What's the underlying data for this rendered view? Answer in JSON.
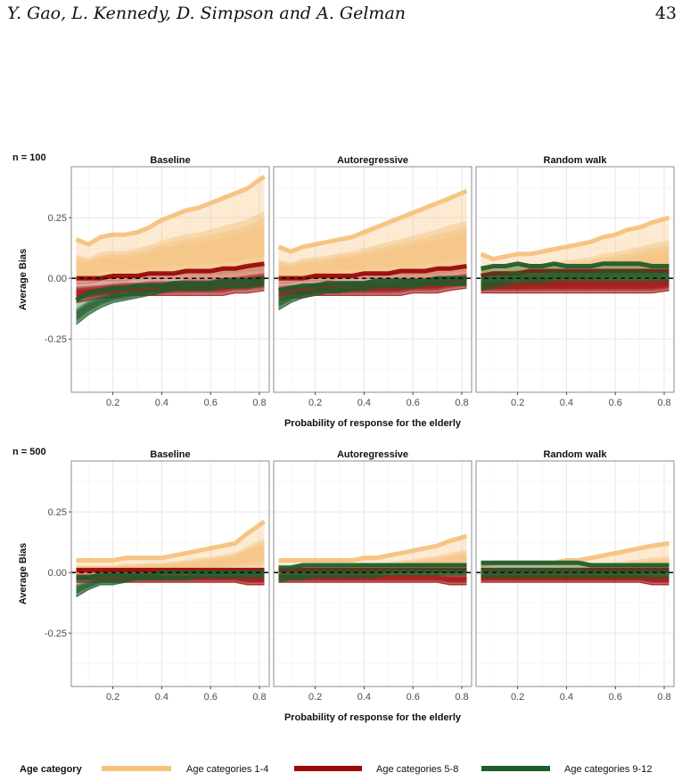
{
  "page_header": {
    "authors": "Y. Gao, L. Kennedy, D. Simpson and A. Gelman",
    "page_number": "43"
  },
  "colors": {
    "age_1_4": "#f5c27d",
    "age_5_8": "#9b0a0a",
    "age_9_12": "#1f5d2b",
    "grid": "#ebebeb",
    "border": "#8c8c8c"
  },
  "chart_data": [
    {
      "type": "line",
      "row_label": "n = 100",
      "xlabel": "Probability of response for the elderly",
      "ylabel": "Average Bias",
      "xlim": [
        0.03,
        0.84
      ],
      "ylim": [
        -0.47,
        0.46
      ],
      "xticks": [
        0.2,
        0.4,
        0.6,
        0.8
      ],
      "xtick_labels": [
        "0.2",
        "0.4",
        "0.6",
        "0.8"
      ],
      "yticks": [
        0.25,
        0.0,
        -0.25
      ],
      "ytick_labels": [
        "0.25",
        "0.00",
        "-0.25"
      ],
      "reference_line": 0,
      "x": [
        0.05,
        0.1,
        0.15,
        0.2,
        0.25,
        0.3,
        0.35,
        0.4,
        0.45,
        0.5,
        0.55,
        0.6,
        0.65,
        0.7,
        0.75,
        0.82
      ],
      "panels": [
        {
          "title": "Baseline",
          "bands": [
            {
              "series": "Age categories 1-4",
              "lower": [
                -0.02,
                -0.02,
                -0.01,
                -0.01,
                -0.01,
                0,
                0,
                0,
                0,
                0,
                0,
                0,
                0,
                0,
                0.01,
                0.01
              ],
              "upper": [
                0.16,
                0.14,
                0.17,
                0.18,
                0.18,
                0.19,
                0.21,
                0.24,
                0.26,
                0.28,
                0.29,
                0.31,
                0.33,
                0.35,
                0.37,
                0.42
              ]
            },
            {
              "series": "Age categories 5-8",
              "lower": [
                -0.1,
                -0.09,
                -0.08,
                -0.08,
                -0.07,
                -0.07,
                -0.07,
                -0.07,
                -0.07,
                -0.07,
                -0.07,
                -0.07,
                -0.07,
                -0.06,
                -0.06,
                -0.05
              ],
              "upper": [
                0,
                0,
                0,
                0.01,
                0.01,
                0.01,
                0.02,
                0.02,
                0.02,
                0.03,
                0.03,
                0.03,
                0.04,
                0.04,
                0.05,
                0.06
              ]
            },
            {
              "series": "Age categories 9-12",
              "lower": [
                -0.19,
                -0.15,
                -0.12,
                -0.1,
                -0.09,
                -0.08,
                -0.07,
                -0.06,
                -0.05,
                -0.05,
                -0.05,
                -0.05,
                -0.04,
                -0.04,
                -0.04,
                -0.03
              ],
              "upper": [
                -0.09,
                -0.06,
                -0.05,
                -0.04,
                -0.04,
                -0.03,
                -0.03,
                -0.03,
                -0.02,
                -0.02,
                -0.02,
                -0.02,
                -0.01,
                -0.01,
                -0.01,
                0
              ]
            }
          ]
        },
        {
          "title": "Autoregressive",
          "bands": [
            {
              "series": "Age categories 1-4",
              "lower": [
                -0.02,
                -0.02,
                -0.01,
                -0.01,
                -0.01,
                0,
                0,
                0,
                0,
                0,
                0,
                0,
                0,
                0,
                0.01,
                0.01
              ],
              "upper": [
                0.13,
                0.11,
                0.13,
                0.14,
                0.15,
                0.16,
                0.17,
                0.19,
                0.21,
                0.23,
                0.25,
                0.27,
                0.29,
                0.31,
                0.33,
                0.36
              ]
            },
            {
              "series": "Age categories 5-8",
              "lower": [
                -0.09,
                -0.08,
                -0.08,
                -0.07,
                -0.07,
                -0.07,
                -0.07,
                -0.07,
                -0.07,
                -0.07,
                -0.07,
                -0.06,
                -0.06,
                -0.06,
                -0.05,
                -0.04
              ],
              "upper": [
                0,
                0,
                0,
                0.01,
                0.01,
                0.01,
                0.01,
                0.02,
                0.02,
                0.02,
                0.03,
                0.03,
                0.03,
                0.04,
                0.04,
                0.05
              ]
            },
            {
              "series": "Age categories 9-12",
              "lower": [
                -0.13,
                -0.1,
                -0.08,
                -0.07,
                -0.06,
                -0.06,
                -0.05,
                -0.05,
                -0.04,
                -0.04,
                -0.04,
                -0.04,
                -0.03,
                -0.03,
                -0.03,
                -0.03
              ],
              "upper": [
                -0.05,
                -0.04,
                -0.03,
                -0.03,
                -0.02,
                -0.02,
                -0.02,
                -0.02,
                -0.01,
                -0.01,
                -0.01,
                -0.01,
                -0.01,
                0,
                0,
                0
              ]
            }
          ]
        },
        {
          "title": "Random walk",
          "bands": [
            {
              "series": "Age categories 1-4",
              "lower": [
                -0.03,
                -0.03,
                -0.03,
                -0.03,
                -0.03,
                -0.03,
                -0.03,
                -0.03,
                -0.03,
                -0.03,
                -0.03,
                -0.03,
                -0.03,
                -0.02,
                -0.02,
                -0.02
              ],
              "upper": [
                0.1,
                0.08,
                0.09,
                0.1,
                0.1,
                0.11,
                0.12,
                0.13,
                0.14,
                0.15,
                0.17,
                0.18,
                0.2,
                0.21,
                0.23,
                0.25
              ]
            },
            {
              "series": "Age categories 5-8",
              "lower": [
                -0.06,
                -0.06,
                -0.06,
                -0.06,
                -0.06,
                -0.06,
                -0.06,
                -0.06,
                -0.06,
                -0.06,
                -0.06,
                -0.06,
                -0.06,
                -0.06,
                -0.06,
                -0.05
              ],
              "upper": [
                0.01,
                0.02,
                0.02,
                0.02,
                0.03,
                0.03,
                0.03,
                0.03,
                0.03,
                0.03,
                0.03,
                0.03,
                0.03,
                0.03,
                0.03,
                0.03
              ]
            },
            {
              "series": "Age categories 9-12",
              "lower": [
                -0.05,
                -0.04,
                -0.03,
                -0.02,
                -0.02,
                -0.02,
                -0.01,
                -0.01,
                -0.01,
                -0.01,
                -0.01,
                -0.01,
                -0.01,
                -0.01,
                -0.01,
                -0.01
              ],
              "upper": [
                0.04,
                0.05,
                0.05,
                0.06,
                0.05,
                0.05,
                0.06,
                0.05,
                0.05,
                0.05,
                0.06,
                0.06,
                0.06,
                0.06,
                0.05,
                0.05
              ]
            }
          ]
        }
      ]
    },
    {
      "type": "line",
      "row_label": "n = 500",
      "xlabel": "Probability of response for the elderly",
      "ylabel": "Average Bias",
      "xlim": [
        0.03,
        0.84
      ],
      "ylim": [
        -0.47,
        0.46
      ],
      "xticks": [
        0.2,
        0.4,
        0.6,
        0.8
      ],
      "xtick_labels": [
        "0.2",
        "0.4",
        "0.6",
        "0.8"
      ],
      "yticks": [
        0.25,
        0.0,
        -0.25
      ],
      "ytick_labels": [
        "0.25",
        "0.00",
        "-0.25"
      ],
      "reference_line": 0,
      "x": [
        0.05,
        0.1,
        0.15,
        0.2,
        0.25,
        0.3,
        0.35,
        0.4,
        0.45,
        0.5,
        0.55,
        0.6,
        0.65,
        0.7,
        0.75,
        0.82
      ],
      "panels": [
        {
          "title": "Baseline",
          "bands": [
            {
              "series": "Age categories 1-4",
              "lower": [
                -0.01,
                -0.01,
                -0.01,
                -0.01,
                -0.01,
                -0.01,
                0,
                0,
                0,
                0,
                0,
                0,
                0,
                0.01,
                0.01,
                0.01
              ],
              "upper": [
                0.05,
                0.05,
                0.05,
                0.05,
                0.06,
                0.06,
                0.06,
                0.06,
                0.07,
                0.08,
                0.09,
                0.1,
                0.11,
                0.12,
                0.16,
                0.21
              ]
            },
            {
              "series": "Age categories 5-8",
              "lower": [
                -0.04,
                -0.04,
                -0.04,
                -0.04,
                -0.04,
                -0.04,
                -0.04,
                -0.04,
                -0.04,
                -0.04,
                -0.04,
                -0.04,
                -0.04,
                -0.04,
                -0.05,
                -0.05
              ],
              "upper": [
                0.01,
                0.01,
                0.01,
                0.01,
                0.01,
                0.01,
                0.01,
                0.01,
                0.01,
                0.01,
                0.01,
                0.01,
                0.01,
                0.01,
                0.01,
                0.01
              ]
            },
            {
              "series": "Age categories 9-12",
              "lower": [
                -0.1,
                -0.07,
                -0.05,
                -0.05,
                -0.04,
                -0.03,
                -0.03,
                -0.03,
                -0.03,
                -0.03,
                -0.02,
                -0.02,
                -0.02,
                -0.02,
                -0.02,
                -0.02
              ],
              "upper": [
                -0.02,
                -0.02,
                -0.01,
                -0.01,
                -0.01,
                -0.01,
                -0.01,
                0,
                0,
                0,
                0,
                0,
                0,
                0,
                0,
                0
              ]
            }
          ]
        },
        {
          "title": "Autoregressive",
          "bands": [
            {
              "series": "Age categories 1-4",
              "lower": [
                -0.02,
                -0.02,
                -0.02,
                -0.02,
                -0.02,
                -0.02,
                -0.02,
                -0.02,
                -0.02,
                -0.01,
                -0.01,
                -0.01,
                -0.01,
                -0.01,
                -0.01,
                -0.01
              ],
              "upper": [
                0.05,
                0.05,
                0.05,
                0.05,
                0.05,
                0.05,
                0.05,
                0.06,
                0.06,
                0.07,
                0.08,
                0.09,
                0.1,
                0.11,
                0.13,
                0.15
              ]
            },
            {
              "series": "Age categories 5-8",
              "lower": [
                -0.04,
                -0.04,
                -0.04,
                -0.04,
                -0.04,
                -0.04,
                -0.04,
                -0.04,
                -0.04,
                -0.04,
                -0.04,
                -0.04,
                -0.04,
                -0.04,
                -0.05,
                -0.05
              ],
              "upper": [
                0.01,
                0.01,
                0.01,
                0.01,
                0.01,
                0.01,
                0.01,
                0.01,
                0.01,
                0.01,
                0.01,
                0.01,
                0.01,
                0.01,
                0.01,
                0.01
              ]
            },
            {
              "series": "Age categories 9-12",
              "lower": [
                -0.04,
                -0.03,
                -0.03,
                -0.02,
                -0.02,
                -0.02,
                -0.02,
                -0.02,
                -0.02,
                -0.01,
                -0.01,
                -0.01,
                -0.01,
                -0.01,
                -0.01,
                -0.01
              ],
              "upper": [
                0.02,
                0.02,
                0.03,
                0.03,
                0.03,
                0.03,
                0.03,
                0.03,
                0.03,
                0.03,
                0.03,
                0.03,
                0.03,
                0.03,
                0.03,
                0.03
              ]
            }
          ]
        },
        {
          "title": "Random walk",
          "bands": [
            {
              "series": "Age categories 1-4",
              "lower": [
                -0.03,
                -0.03,
                -0.03,
                -0.03,
                -0.03,
                -0.03,
                -0.03,
                -0.03,
                -0.03,
                -0.03,
                -0.03,
                -0.03,
                -0.03,
                -0.03,
                -0.03,
                -0.03
              ],
              "upper": [
                0.03,
                0.04,
                0.04,
                0.04,
                0.04,
                0.04,
                0.04,
                0.05,
                0.05,
                0.06,
                0.07,
                0.08,
                0.09,
                0.1,
                0.11,
                0.12
              ]
            },
            {
              "series": "Age categories 5-8",
              "lower": [
                -0.04,
                -0.04,
                -0.04,
                -0.04,
                -0.04,
                -0.04,
                -0.04,
                -0.04,
                -0.04,
                -0.04,
                -0.04,
                -0.04,
                -0.04,
                -0.04,
                -0.05,
                -0.05
              ],
              "upper": [
                0.01,
                0.01,
                0.01,
                0.01,
                0.01,
                0.01,
                0.01,
                0.01,
                0.01,
                0.01,
                0.01,
                0.01,
                0.01,
                0.01,
                0.01,
                0.01
              ]
            },
            {
              "series": "Age categories 9-12",
              "lower": [
                -0.02,
                -0.02,
                -0.02,
                -0.02,
                -0.02,
                -0.02,
                -0.02,
                -0.02,
                -0.02,
                -0.02,
                -0.02,
                -0.02,
                -0.02,
                -0.02,
                -0.02,
                -0.02
              ],
              "upper": [
                0.04,
                0.04,
                0.04,
                0.04,
                0.04,
                0.04,
                0.04,
                0.04,
                0.04,
                0.03,
                0.03,
                0.03,
                0.03,
                0.03,
                0.03,
                0.03
              ]
            }
          ]
        }
      ]
    }
  ],
  "legend": {
    "title": "Age category",
    "position": "bottom",
    "items": [
      {
        "label": "Age categories 1-4",
        "color": "#f5c27d"
      },
      {
        "label": "Age categories 5-8",
        "color": "#9b0a0a"
      },
      {
        "label": "Age categories 9-12",
        "color": "#1f5d2b"
      }
    ]
  }
}
